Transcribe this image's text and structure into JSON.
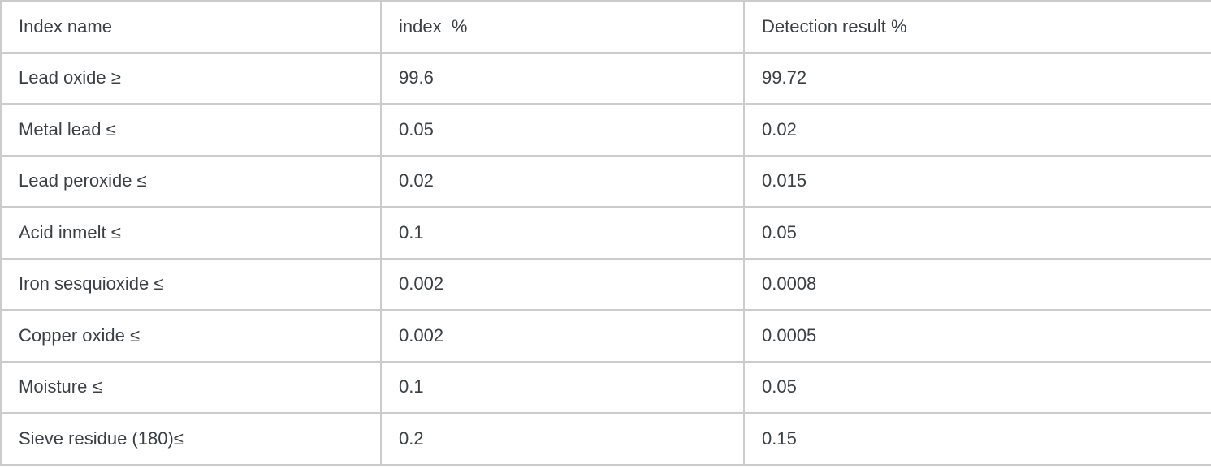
{
  "table": {
    "columns": [
      "Index name",
      "index  %",
      "Detection result %"
    ],
    "rows": [
      [
        "Lead oxide ≥",
        "99.6",
        "99.72"
      ],
      [
        "Metal lead ≤",
        "0.05",
        "0.02"
      ],
      [
        "Lead peroxide ≤",
        "0.02",
        "0.015"
      ],
      [
        "Acid inmelt ≤",
        "0.1",
        "0.05"
      ],
      [
        "Iron sesquioxide ≤",
        "0.002",
        "0.0008"
      ],
      [
        "Copper oxide ≤",
        "0.002",
        "0.0005"
      ],
      [
        "Moisture ≤",
        "0.1",
        "0.05"
      ],
      [
        "Sieve residue (180)≤",
        "0.2",
        "0.15"
      ]
    ]
  },
  "colors": {
    "border": "#cccccc",
    "text": "#3c4043",
    "background": "#ffffff"
  }
}
